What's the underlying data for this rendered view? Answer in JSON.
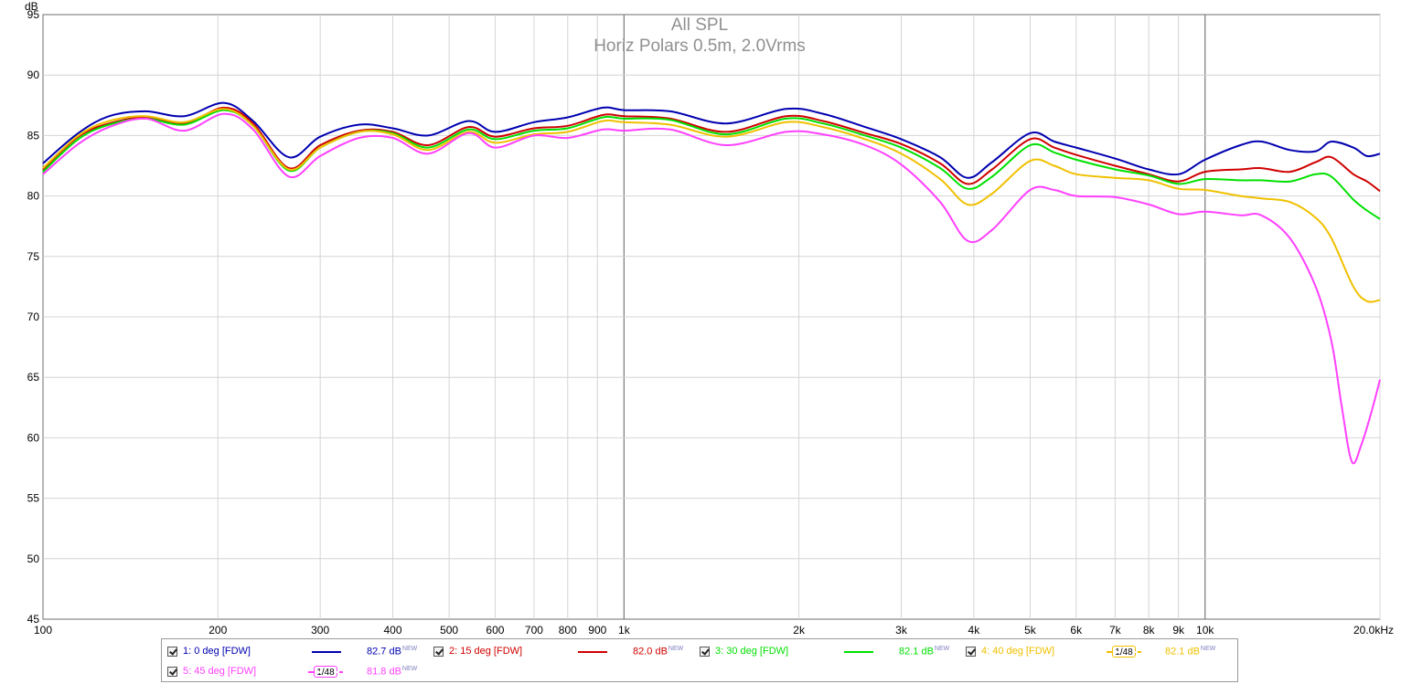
{
  "chart_data": {
    "type": "line",
    "title": "All SPL",
    "subtitle": "Horiz Polars 0.5m, 2.0Vrms",
    "ylabel": "dB",
    "xscale": "log",
    "xlim": [
      100,
      20000
    ],
    "ylim": [
      45,
      95
    ],
    "grid": true,
    "x_ticks": [
      {
        "v": 100,
        "label": "100"
      },
      {
        "v": 200,
        "label": "200"
      },
      {
        "v": 300,
        "label": "300"
      },
      {
        "v": 400,
        "label": "400"
      },
      {
        "v": 500,
        "label": "500"
      },
      {
        "v": 600,
        "label": "600"
      },
      {
        "v": 700,
        "label": "700"
      },
      {
        "v": 800,
        "label": "800"
      },
      {
        "v": 900,
        "label": "900"
      },
      {
        "v": 1000,
        "label": "1k"
      },
      {
        "v": 2000,
        "label": "2k"
      },
      {
        "v": 3000,
        "label": "3k"
      },
      {
        "v": 4000,
        "label": "4k"
      },
      {
        "v": 5000,
        "label": "5k"
      },
      {
        "v": 6000,
        "label": "6k"
      },
      {
        "v": 7000,
        "label": "7k"
      },
      {
        "v": 8000,
        "label": "8k"
      },
      {
        "v": 9000,
        "label": "9k"
      },
      {
        "v": 10000,
        "label": "10k"
      },
      {
        "v": 20000,
        "label": "20.0kHz"
      }
    ],
    "y_ticks": [
      95,
      90,
      85,
      80,
      75,
      70,
      65,
      60,
      55,
      50,
      45
    ],
    "legend_position": "bottom",
    "series": [
      {
        "name": "1: 0 deg [FDW]",
        "color": "#0000b0",
        "level": "82.7 dB",
        "tag": "NEW",
        "smoothing": "",
        "points": [
          [
            100,
            82.7
          ],
          [
            115,
            85.2
          ],
          [
            130,
            86.6
          ],
          [
            150,
            87.0
          ],
          [
            175,
            86.6
          ],
          [
            205,
            87.7
          ],
          [
            230,
            86.2
          ],
          [
            265,
            83.2
          ],
          [
            300,
            84.9
          ],
          [
            350,
            85.9
          ],
          [
            400,
            85.6
          ],
          [
            460,
            85.0
          ],
          [
            540,
            86.2
          ],
          [
            600,
            85.3
          ],
          [
            700,
            86.1
          ],
          [
            800,
            86.5
          ],
          [
            920,
            87.3
          ],
          [
            1000,
            87.1
          ],
          [
            1200,
            87.0
          ],
          [
            1500,
            86.0
          ],
          [
            1900,
            87.2
          ],
          [
            2200,
            86.8
          ],
          [
            2600,
            85.7
          ],
          [
            3000,
            84.7
          ],
          [
            3500,
            83.2
          ],
          [
            3900,
            81.5
          ],
          [
            4300,
            82.8
          ],
          [
            5000,
            85.2
          ],
          [
            5500,
            84.5
          ],
          [
            6000,
            84.0
          ],
          [
            7000,
            83.1
          ],
          [
            8000,
            82.2
          ],
          [
            9000,
            81.8
          ],
          [
            10000,
            83.0
          ],
          [
            11500,
            84.2
          ],
          [
            12500,
            84.5
          ],
          [
            14000,
            83.8
          ],
          [
            15500,
            83.7
          ],
          [
            16500,
            84.5
          ],
          [
            18000,
            84.0
          ],
          [
            19000,
            83.3
          ],
          [
            20000,
            83.5
          ]
        ]
      },
      {
        "name": "2: 15 deg [FDW]",
        "color": "#d00000",
        "level": "82.0 dB",
        "tag": "NEW",
        "smoothing": "",
        "points": [
          [
            100,
            82.2
          ],
          [
            115,
            84.9
          ],
          [
            130,
            86.0
          ],
          [
            150,
            86.5
          ],
          [
            175,
            86.0
          ],
          [
            205,
            87.3
          ],
          [
            230,
            86.0
          ],
          [
            265,
            82.3
          ],
          [
            300,
            84.2
          ],
          [
            350,
            85.4
          ],
          [
            400,
            85.3
          ],
          [
            460,
            84.2
          ],
          [
            540,
            85.7
          ],
          [
            600,
            84.9
          ],
          [
            700,
            85.6
          ],
          [
            800,
            85.8
          ],
          [
            920,
            86.7
          ],
          [
            1000,
            86.6
          ],
          [
            1200,
            86.4
          ],
          [
            1500,
            85.3
          ],
          [
            1900,
            86.6
          ],
          [
            2200,
            86.2
          ],
          [
            2600,
            85.2
          ],
          [
            3000,
            84.3
          ],
          [
            3500,
            82.7
          ],
          [
            3900,
            81.0
          ],
          [
            4300,
            82.2
          ],
          [
            5000,
            84.7
          ],
          [
            5500,
            84.0
          ],
          [
            6000,
            83.4
          ],
          [
            7000,
            82.5
          ],
          [
            8000,
            81.8
          ],
          [
            9000,
            81.2
          ],
          [
            10000,
            82.0
          ],
          [
            11500,
            82.2
          ],
          [
            12500,
            82.3
          ],
          [
            14000,
            82.0
          ],
          [
            15500,
            82.8
          ],
          [
            16500,
            83.2
          ],
          [
            18000,
            81.8
          ],
          [
            19000,
            81.2
          ],
          [
            20000,
            80.4
          ]
        ]
      },
      {
        "name": "3: 30 deg [FDW]",
        "color": "#00e000",
        "level": "82.1 dB",
        "tag": "NEW",
        "smoothing": "",
        "points": [
          [
            100,
            82.0
          ],
          [
            115,
            84.7
          ],
          [
            130,
            85.9
          ],
          [
            150,
            86.4
          ],
          [
            175,
            85.9
          ],
          [
            205,
            87.1
          ],
          [
            230,
            85.8
          ],
          [
            265,
            82.1
          ],
          [
            300,
            84.0
          ],
          [
            350,
            85.3
          ],
          [
            400,
            85.2
          ],
          [
            460,
            84.0
          ],
          [
            540,
            85.5
          ],
          [
            600,
            84.7
          ],
          [
            700,
            85.4
          ],
          [
            800,
            85.6
          ],
          [
            920,
            86.5
          ],
          [
            1000,
            86.4
          ],
          [
            1200,
            86.3
          ],
          [
            1500,
            85.1
          ],
          [
            1900,
            86.4
          ],
          [
            2200,
            86.0
          ],
          [
            2600,
            85.0
          ],
          [
            3000,
            84.0
          ],
          [
            3500,
            82.3
          ],
          [
            3900,
            80.6
          ],
          [
            4300,
            81.6
          ],
          [
            5000,
            84.2
          ],
          [
            5500,
            83.6
          ],
          [
            6000,
            83.0
          ],
          [
            7000,
            82.2
          ],
          [
            8000,
            81.7
          ],
          [
            9000,
            81.0
          ],
          [
            10000,
            81.4
          ],
          [
            11500,
            81.3
          ],
          [
            12500,
            81.3
          ],
          [
            14000,
            81.2
          ],
          [
            15500,
            81.8
          ],
          [
            16500,
            81.6
          ],
          [
            18000,
            79.7
          ],
          [
            19000,
            78.8
          ],
          [
            20000,
            78.1
          ]
        ]
      },
      {
        "name": "4: 40 deg [FDW]",
        "color": "#f0c000",
        "level": "82.1 dB",
        "tag": "NEW",
        "smoothing": "1/48",
        "points": [
          [
            100,
            82.3
          ],
          [
            115,
            85.0
          ],
          [
            130,
            86.2
          ],
          [
            150,
            86.6
          ],
          [
            175,
            86.1
          ],
          [
            205,
            87.2
          ],
          [
            230,
            85.8
          ],
          [
            265,
            82.2
          ],
          [
            300,
            84.0
          ],
          [
            350,
            85.3
          ],
          [
            400,
            85.1
          ],
          [
            460,
            83.8
          ],
          [
            540,
            85.3
          ],
          [
            600,
            84.4
          ],
          [
            700,
            85.1
          ],
          [
            800,
            85.3
          ],
          [
            920,
            86.2
          ],
          [
            1000,
            86.1
          ],
          [
            1200,
            85.9
          ],
          [
            1500,
            84.9
          ],
          [
            1900,
            86.1
          ],
          [
            2200,
            85.7
          ],
          [
            2600,
            84.7
          ],
          [
            3000,
            83.5
          ],
          [
            3500,
            81.4
          ],
          [
            3900,
            79.3
          ],
          [
            4300,
            80.2
          ],
          [
            5000,
            82.9
          ],
          [
            5500,
            82.5
          ],
          [
            6000,
            81.8
          ],
          [
            7000,
            81.5
          ],
          [
            8000,
            81.3
          ],
          [
            9000,
            80.6
          ],
          [
            10000,
            80.5
          ],
          [
            11500,
            80.0
          ],
          [
            12500,
            79.8
          ],
          [
            14000,
            79.5
          ],
          [
            15500,
            78.2
          ],
          [
            16500,
            76.5
          ],
          [
            18000,
            72.5
          ],
          [
            19000,
            71.3
          ],
          [
            20000,
            71.4
          ]
        ]
      },
      {
        "name": "5: 45 deg [FDW]",
        "color": "#ff40ff",
        "level": "81.8 dB",
        "tag": "NEW",
        "smoothing": "1/48",
        "points": [
          [
            100,
            81.8
          ],
          [
            115,
            84.3
          ],
          [
            130,
            85.7
          ],
          [
            150,
            86.4
          ],
          [
            175,
            85.4
          ],
          [
            205,
            86.8
          ],
          [
            230,
            85.5
          ],
          [
            265,
            81.6
          ],
          [
            300,
            83.3
          ],
          [
            350,
            84.8
          ],
          [
            400,
            84.8
          ],
          [
            460,
            83.5
          ],
          [
            540,
            85.2
          ],
          [
            600,
            84.0
          ],
          [
            700,
            85.0
          ],
          [
            800,
            84.8
          ],
          [
            920,
            85.5
          ],
          [
            1000,
            85.4
          ],
          [
            1200,
            85.5
          ],
          [
            1500,
            84.2
          ],
          [
            1900,
            85.3
          ],
          [
            2200,
            85.1
          ],
          [
            2600,
            84.2
          ],
          [
            3000,
            82.6
          ],
          [
            3500,
            79.5
          ],
          [
            3900,
            76.3
          ],
          [
            4300,
            77.2
          ],
          [
            5000,
            80.5
          ],
          [
            5500,
            80.5
          ],
          [
            6000,
            80.0
          ],
          [
            7000,
            79.9
          ],
          [
            8000,
            79.3
          ],
          [
            9000,
            78.5
          ],
          [
            10000,
            78.7
          ],
          [
            11500,
            78.4
          ],
          [
            12500,
            78.4
          ],
          [
            14000,
            76.5
          ],
          [
            15500,
            72.5
          ],
          [
            16500,
            68.0
          ],
          [
            17200,
            62.5
          ],
          [
            17900,
            58.0
          ],
          [
            18600,
            59.5
          ],
          [
            19300,
            62.0
          ],
          [
            20000,
            64.8
          ]
        ]
      }
    ]
  }
}
